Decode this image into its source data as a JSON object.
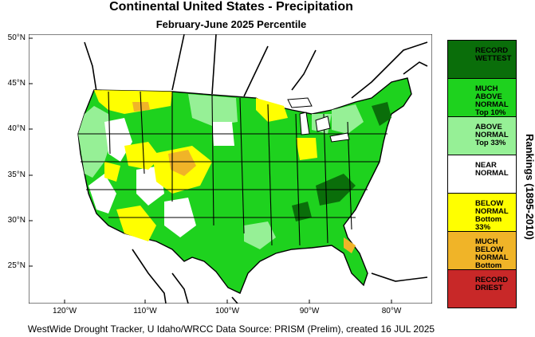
{
  "title": "Continental United States - Precipitation",
  "subtitle": "February-June 2025 Percentile",
  "footer": "WestWide Drought Tracker, U Idaho/WRCC Data Source: PRISM (Prelim), created 16 JUL 2025",
  "axes": {
    "lat_ticks": [
      "50°N",
      "45°N",
      "40°N",
      "35°N",
      "30°N",
      "25°N"
    ],
    "lon_ticks": [
      "120°W",
      "110°W",
      "100°W",
      "90°W",
      "80°W"
    ]
  },
  "legend": {
    "title": "Rankings (1895-2010)",
    "items": [
      {
        "label": "RECORD\nWETTEST",
        "color": "#0a6e0a"
      },
      {
        "label": "MUCH\nABOVE\nNORMAL\nTop 10%",
        "color": "#1ed21e"
      },
      {
        "label": "ABOVE\nNORMAL\nTop 33%",
        "color": "#96f096"
      },
      {
        "label": "NEAR\nNORMAL",
        "color": "#ffffff"
      },
      {
        "label": "BELOW\nNORMAL\nBottom 33%",
        "color": "#ffff00"
      },
      {
        "label": "MUCH\nBELOW\nNORMAL\nBottom 10%",
        "color": "#f0b428"
      },
      {
        "label": "RECORD\nDRIEST",
        "color": "#c82828"
      }
    ]
  },
  "colors": {
    "above": "#96f096",
    "much_above": "#1ed21e",
    "record_wet": "#0a6e0a",
    "near": "#ffffff",
    "below": "#ffff00",
    "much_below": "#f0b428"
  }
}
